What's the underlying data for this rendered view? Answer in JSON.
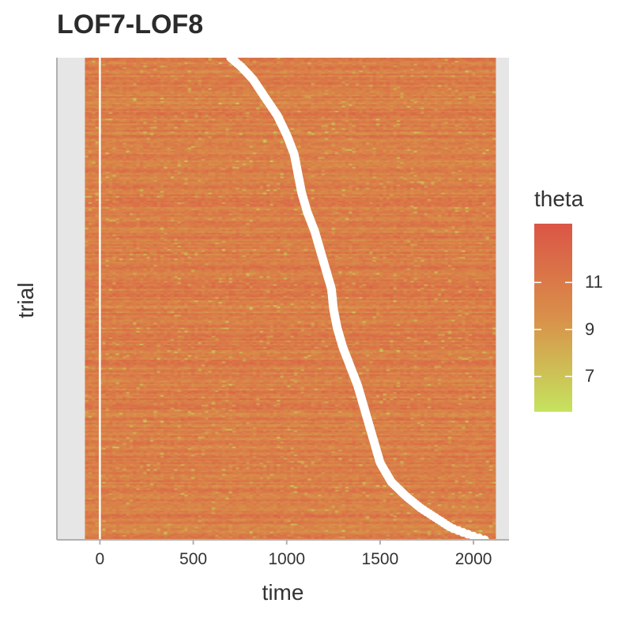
{
  "chart_data": {
    "type": "heatmap",
    "title": "LOF7-LOF8",
    "xlabel": "time",
    "ylabel": "trial",
    "x_range": [
      -80,
      2120
    ],
    "xlim": [
      -230,
      2190
    ],
    "xticks": [
      0,
      500,
      1000,
      1500,
      2000
    ],
    "xtick_labels": [
      "0",
      "500",
      "1000",
      "1500",
      "2000"
    ],
    "event_line_x": 0,
    "colorbar": {
      "title": "theta",
      "range": [
        5.5,
        13.5
      ],
      "ticks": [
        7,
        9,
        11
      ],
      "tick_labels": [
        "7",
        "9",
        "11"
      ],
      "low_color": "#c5e35e",
      "mid_color": "#d9904a",
      "high_color": "#db5546"
    },
    "response_times": {
      "description_of_series": "white dots: per-trial response time, trials sorted",
      "x": [
        700,
        760,
        820,
        880,
        950,
        1000,
        1040,
        1060,
        1080,
        1110,
        1150,
        1180,
        1210,
        1240,
        1250,
        1270,
        1300,
        1340,
        1380,
        1410,
        1440,
        1470,
        1500,
        1560,
        1640,
        1720,
        1800,
        1880,
        1980,
        2060
      ],
      "trial_fraction": [
        0.0,
        0.02,
        0.045,
        0.08,
        0.12,
        0.16,
        0.2,
        0.24,
        0.28,
        0.32,
        0.36,
        0.4,
        0.44,
        0.48,
        0.52,
        0.56,
        0.6,
        0.64,
        0.68,
        0.72,
        0.76,
        0.8,
        0.84,
        0.88,
        0.91,
        0.935,
        0.955,
        0.975,
        0.99,
        1.0
      ]
    }
  }
}
